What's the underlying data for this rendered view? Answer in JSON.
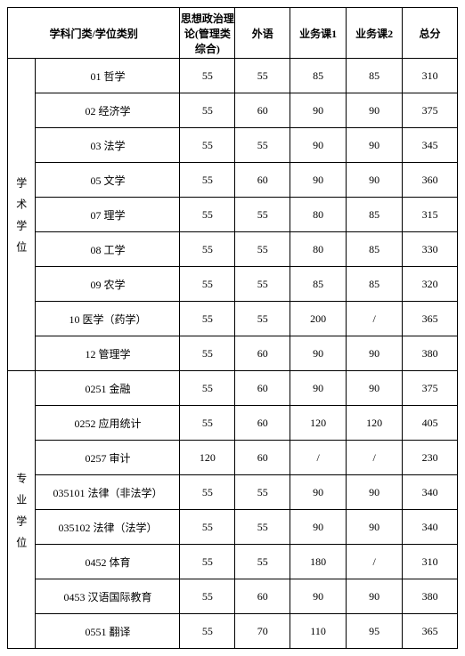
{
  "headers": {
    "category": "学科门类/学位类别",
    "politics": "思想政治理论(管理类综合)",
    "foreign": "外语",
    "course1": "业务课1",
    "course2": "业务课2",
    "total": "总分"
  },
  "groups": [
    {
      "label": "学术学位",
      "rows": [
        {
          "name": "01 哲学",
          "politics": "55",
          "foreign": "55",
          "c1": "85",
          "c2": "85",
          "total": "310"
        },
        {
          "name": "02 经济学",
          "politics": "55",
          "foreign": "60",
          "c1": "90",
          "c2": "90",
          "total": "375"
        },
        {
          "name": "03 法学",
          "politics": "55",
          "foreign": "55",
          "c1": "90",
          "c2": "90",
          "total": "345"
        },
        {
          "name": "05 文学",
          "politics": "55",
          "foreign": "60",
          "c1": "90",
          "c2": "90",
          "total": "360"
        },
        {
          "name": "07 理学",
          "politics": "55",
          "foreign": "55",
          "c1": "80",
          "c2": "85",
          "total": "315"
        },
        {
          "name": "08 工学",
          "politics": "55",
          "foreign": "55",
          "c1": "80",
          "c2": "85",
          "total": "330"
        },
        {
          "name": "09 农学",
          "politics": "55",
          "foreign": "55",
          "c1": "85",
          "c2": "85",
          "total": "320"
        },
        {
          "name": "10 医学（药学）",
          "politics": "55",
          "foreign": "55",
          "c1": "200",
          "c2": "/",
          "total": "365"
        },
        {
          "name": "12 管理学",
          "politics": "55",
          "foreign": "60",
          "c1": "90",
          "c2": "90",
          "total": "380"
        }
      ]
    },
    {
      "label": "专业学位",
      "rows": [
        {
          "name": "0251 金融",
          "politics": "55",
          "foreign": "60",
          "c1": "90",
          "c2": "90",
          "total": "375"
        },
        {
          "name": "0252 应用统计",
          "politics": "55",
          "foreign": "60",
          "c1": "120",
          "c2": "120",
          "total": "405"
        },
        {
          "name": "0257 审计",
          "politics": "120",
          "foreign": "60",
          "c1": "/",
          "c2": "/",
          "total": "230"
        },
        {
          "name": "035101 法律（非法学）",
          "politics": "55",
          "foreign": "55",
          "c1": "90",
          "c2": "90",
          "total": "340"
        },
        {
          "name": "035102 法律（法学）",
          "politics": "55",
          "foreign": "55",
          "c1": "90",
          "c2": "90",
          "total": "340"
        },
        {
          "name": "0452 体育",
          "politics": "55",
          "foreign": "55",
          "c1": "180",
          "c2": "/",
          "total": "310"
        },
        {
          "name": "0453 汉语国际教育",
          "politics": "55",
          "foreign": "60",
          "c1": "90",
          "c2": "90",
          "total": "380"
        },
        {
          "name": "0551 翻译",
          "politics": "55",
          "foreign": "70",
          "c1": "110",
          "c2": "95",
          "total": "365"
        }
      ]
    }
  ]
}
